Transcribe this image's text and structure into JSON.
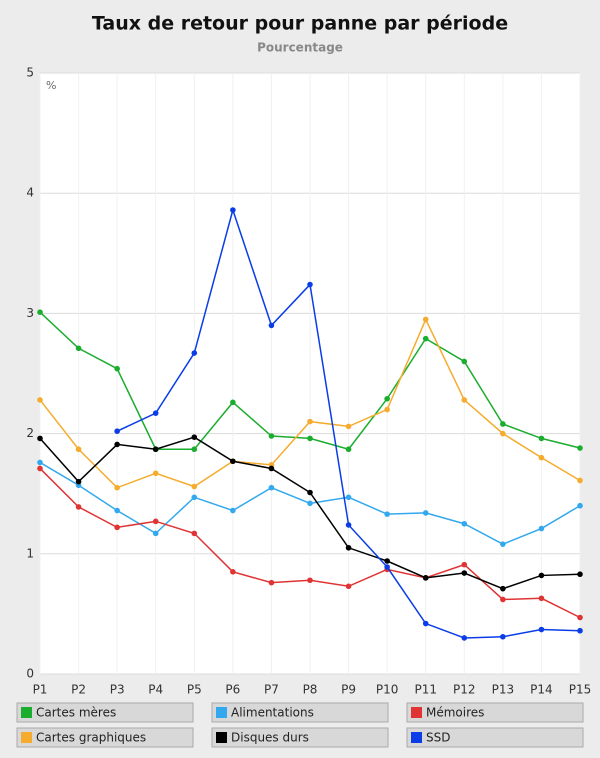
{
  "chart_data": {
    "type": "line",
    "title": "Taux de retour pour panne par période",
    "subtitle": "Pourcentage",
    "y_unit": "%",
    "categories": [
      "P1",
      "P2",
      "P3",
      "P4",
      "P5",
      "P6",
      "P7",
      "P8",
      "P9",
      "P10",
      "P11",
      "P12",
      "P13",
      "P14",
      "P15"
    ],
    "ylim": [
      0,
      5
    ],
    "yticks": [
      0,
      1,
      2,
      3,
      4,
      5
    ],
    "grid": true,
    "series": [
      {
        "name": "Cartes mères",
        "color": "#1aad2e",
        "values": [
          3.01,
          2.71,
          2.54,
          1.87,
          1.87,
          2.26,
          1.98,
          1.96,
          1.87,
          2.29,
          2.79,
          2.6,
          2.08,
          1.96,
          1.88
        ]
      },
      {
        "name": "Alimentations",
        "color": "#33a8ee",
        "values": [
          1.76,
          1.57,
          1.36,
          1.17,
          1.47,
          1.36,
          1.55,
          1.42,
          1.47,
          1.33,
          1.34,
          1.25,
          1.08,
          1.21,
          1.4
        ]
      },
      {
        "name": "Mémoires",
        "color": "#e03333",
        "values": [
          1.71,
          1.39,
          1.22,
          1.27,
          1.17,
          0.85,
          0.76,
          0.78,
          0.73,
          0.87,
          0.8,
          0.91,
          0.62,
          0.63,
          0.47
        ]
      },
      {
        "name": "Cartes graphiques",
        "color": "#f5ac2e",
        "values": [
          2.28,
          1.87,
          1.55,
          1.67,
          1.56,
          1.77,
          1.74,
          2.1,
          2.06,
          2.2,
          2.95,
          2.28,
          2.0,
          1.8,
          1.61
        ]
      },
      {
        "name": "Disques durs",
        "color": "#000000",
        "values": [
          1.96,
          1.6,
          1.91,
          1.87,
          1.97,
          1.77,
          1.71,
          1.51,
          1.05,
          0.94,
          0.8,
          0.84,
          0.71,
          0.82,
          0.83
        ]
      },
      {
        "name": "SSD",
        "color": "#0a3de8",
        "values": [
          null,
          null,
          2.02,
          2.17,
          2.67,
          3.86,
          2.9,
          3.24,
          1.24,
          0.89,
          0.42,
          0.3,
          0.31,
          0.37,
          0.36
        ]
      }
    ]
  }
}
